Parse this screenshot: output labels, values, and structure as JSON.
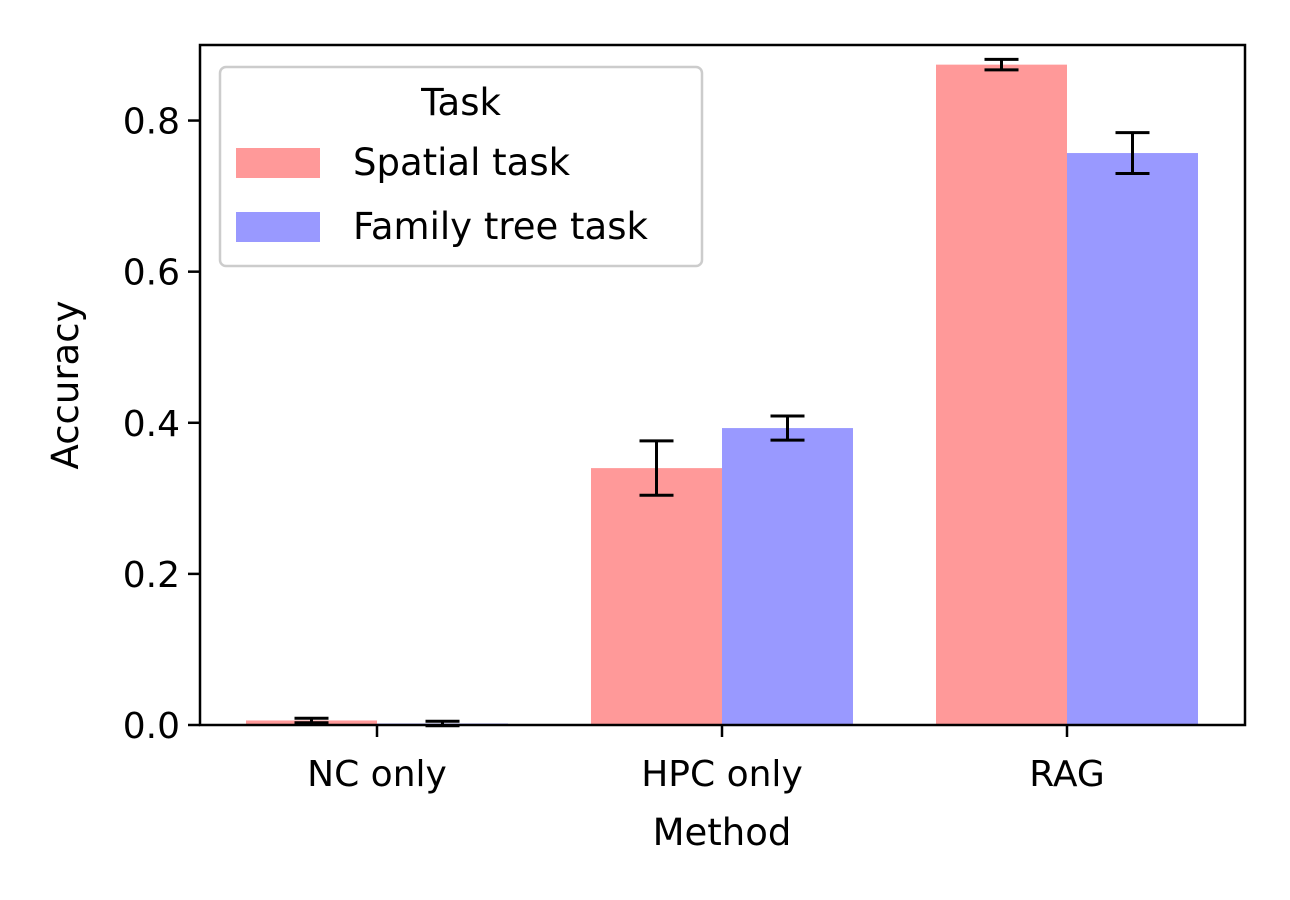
{
  "chart_data": {
    "type": "bar",
    "title": "",
    "xlabel": "Method",
    "ylabel": "Accuracy",
    "categories": [
      "NC only",
      "HPC only",
      "RAG"
    ],
    "series": [
      {
        "name": "Spatial task",
        "values": [
          0.006,
          0.34,
          0.874
        ],
        "errors": [
          0.003,
          0.036,
          0.007
        ],
        "color": "#ff9999"
      },
      {
        "name": "Family tree task",
        "values": [
          0.002,
          0.393,
          0.757
        ],
        "errors": [
          0.003,
          0.016,
          0.027
        ],
        "color": "#9999ff"
      }
    ],
    "ylim": [
      0,
      0.9
    ],
    "yticks": [
      0.0,
      0.2,
      0.4,
      0.6,
      0.8
    ],
    "ytick_labels": [
      "0.0",
      "0.2",
      "0.4",
      "0.6",
      "0.8"
    ],
    "grid": false,
    "legend": {
      "title": "Task",
      "placement": "upper-left"
    },
    "error_bar_color": "#000000"
  }
}
